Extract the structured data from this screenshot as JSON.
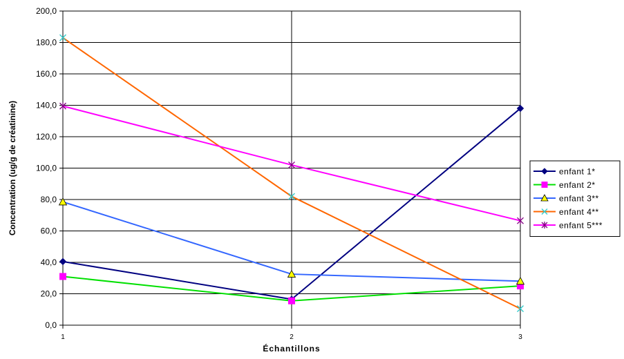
{
  "chart_data": {
    "type": "line",
    "title": "",
    "xlabel": "Échantillons",
    "ylabel": "Concentration (ug/g de créatinine)",
    "categories": [
      "1",
      "2",
      "3"
    ],
    "ylim": [
      0,
      200
    ],
    "yticks": [
      "0,0",
      "20,0",
      "40,0",
      "60,0",
      "80,0",
      "100,0",
      "120,0",
      "140,0",
      "160,0",
      "180,0",
      "200,0"
    ],
    "grid": true,
    "legend_position": "right",
    "series": [
      {
        "name": "enfant 1*",
        "values": [
          40.5,
          16.5,
          138.0
        ],
        "color": "#000080",
        "marker": "diamond"
      },
      {
        "name": "enfant 2*",
        "values": [
          31.0,
          15.5,
          25.0
        ],
        "color": "#00e000",
        "marker_color": "#ff00ff",
        "marker": "square"
      },
      {
        "name": "enfant 3**",
        "values": [
          78.5,
          32.5,
          28.0
        ],
        "color": "#3366ff",
        "marker_color": "#ffff00",
        "marker": "triangle"
      },
      {
        "name": "enfant 4**",
        "values": [
          183.0,
          82.0,
          10.5
        ],
        "color": "#ff6600",
        "marker_color": "#33cccc",
        "marker": "x"
      },
      {
        "name": "enfant 5***",
        "values": [
          139.5,
          102.0,
          66.5
        ],
        "color": "#ff00ff",
        "marker_color": "#800080",
        "marker": "star"
      }
    ]
  }
}
